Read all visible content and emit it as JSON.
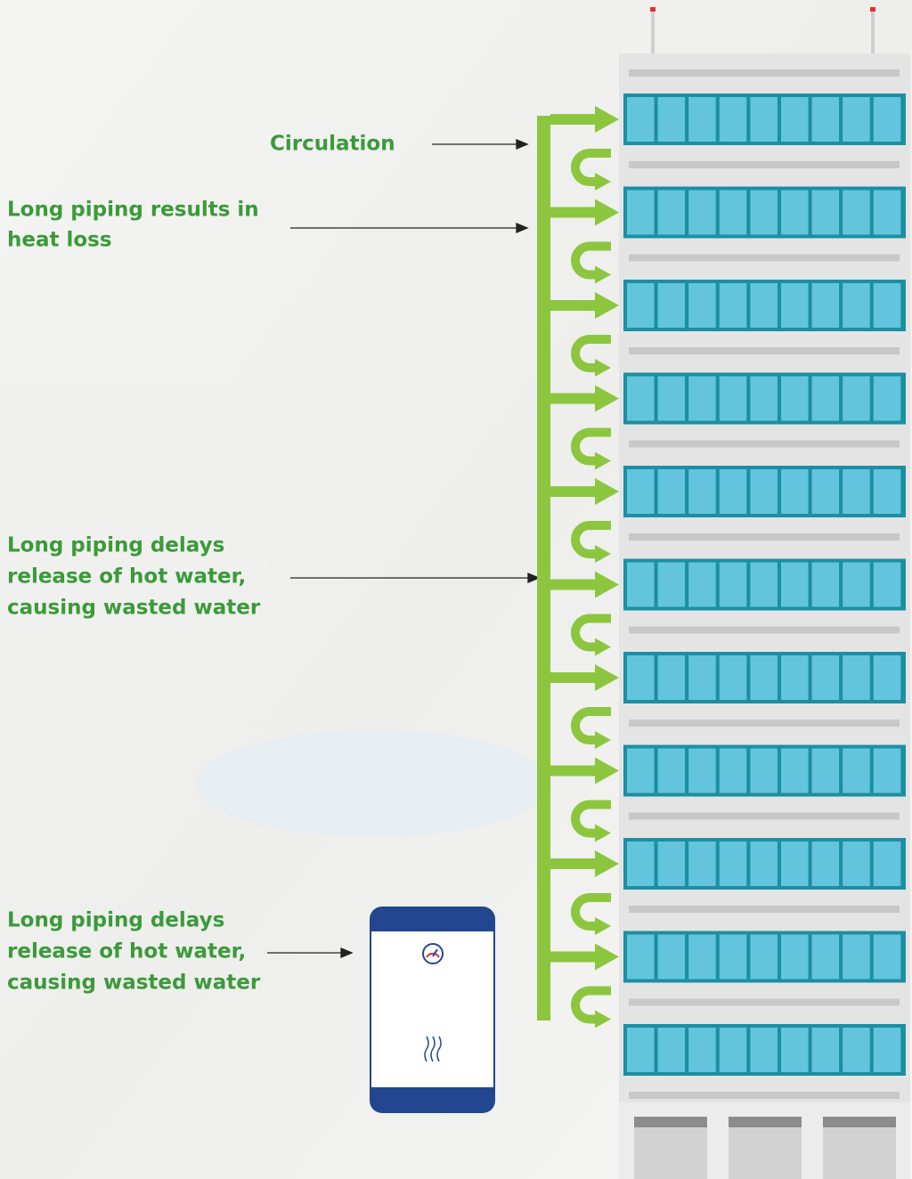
{
  "labels": {
    "circulation": "Circulation",
    "heat_loss": [
      "Long piping results in",
      "heat loss"
    ],
    "delay": [
      "Long piping delays",
      "release of hot water,",
      "causing wasted water"
    ],
    "delay_heater": [
      "Long piping delays",
      "release of hot water,",
      "causing wasted water"
    ]
  }
}
